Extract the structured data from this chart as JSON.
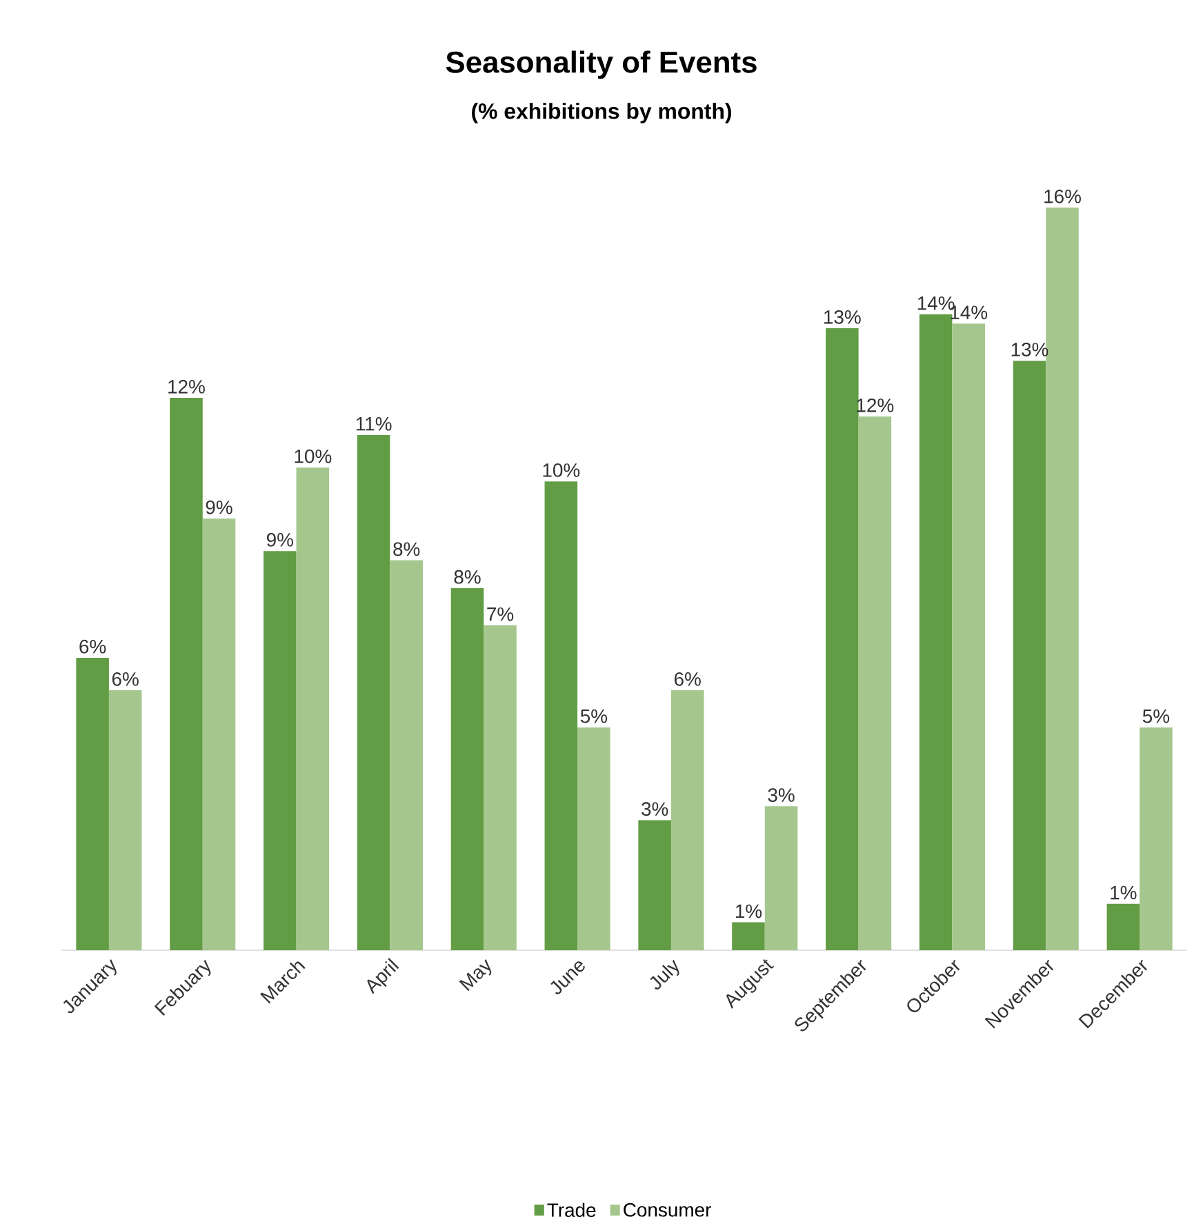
{
  "chart_data": {
    "type": "bar",
    "title": "Seasonality of Events",
    "subtitle": "(% exhibitions by month)",
    "categories": [
      "January",
      "Febuary",
      "March",
      "April",
      "May",
      "June",
      "July",
      "August",
      "September",
      "October",
      "November",
      "December"
    ],
    "legend": "bottom",
    "series": [
      {
        "name": "Trade",
        "color": "#629c44",
        "values": [
          6.3,
          11.9,
          8.6,
          11.1,
          7.8,
          10.1,
          2.8,
          0.6,
          13.4,
          13.7,
          12.7,
          1.0
        ],
        "value_labels": [
          "6%",
          "12%",
          "9%",
          "11%",
          "8%",
          "10%",
          "3%",
          "1%",
          "13%",
          "14%",
          "13%",
          "1%"
        ]
      },
      {
        "name": "Consumer",
        "color": "#a5c78e",
        "values": [
          5.6,
          9.3,
          10.4,
          8.4,
          7.0,
          4.8,
          5.6,
          3.1,
          11.5,
          13.5,
          16.0,
          4.8
        ],
        "value_labels": [
          "6%",
          "9%",
          "10%",
          "8%",
          "7%",
          "5%",
          "6%",
          "3%",
          "12%",
          "14%",
          "16%",
          "5%"
        ]
      }
    ]
  }
}
